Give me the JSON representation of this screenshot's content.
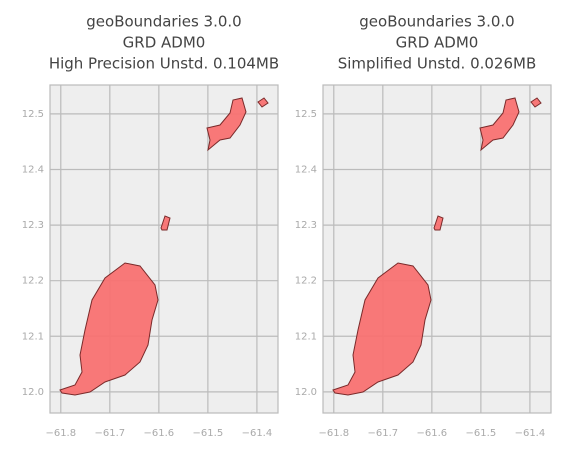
{
  "chart_data": [
    {
      "type": "map",
      "title": [
        "geoBoundaries 3.0.0",
        "GRD ADM0",
        "High Precision Unstd. 0.104MB"
      ],
      "xlim": [
        -61.822,
        -61.357
      ],
      "ylim": [
        11.962,
        12.552
      ],
      "xticks": [
        {
          "value": -61.8,
          "label": "−61.8"
        },
        {
          "value": -61.7,
          "label": "−61.7"
        },
        {
          "value": -61.6,
          "label": "−61.6"
        },
        {
          "value": -61.5,
          "label": "−61.5"
        },
        {
          "value": -61.4,
          "label": "−61.4"
        }
      ],
      "yticks": [
        {
          "value": 12,
          "label": "12.0"
        },
        12.1,
        12.2,
        12.3,
        12.4,
        12.5
      ],
      "grid": true,
      "color": "#f87171"
    },
    {
      "type": "map",
      "title": [
        "geoBoundaries 3.0.0",
        "GRD ADM0",
        "Simplified Unstd. 0.026MB"
      ],
      "xlim": [
        -61.822,
        -61.357
      ],
      "ylim": [
        11.962,
        12.552
      ],
      "xticks": [
        {
          "value": -61.8,
          "label": "−61.8"
        },
        {
          "value": -61.7,
          "label": "−61.7"
        },
        {
          "value": -61.6,
          "label": "−61.6"
        },
        {
          "value": -61.5,
          "label": "−61.5"
        },
        {
          "value": -61.4,
          "label": "−61.4"
        }
      ],
      "yticks": [
        {
          "value": 12,
          "label": "12.0"
        },
        12.1,
        12.2,
        12.3,
        12.4,
        12.5
      ],
      "grid": true,
      "color": "#f87171"
    }
  ]
}
